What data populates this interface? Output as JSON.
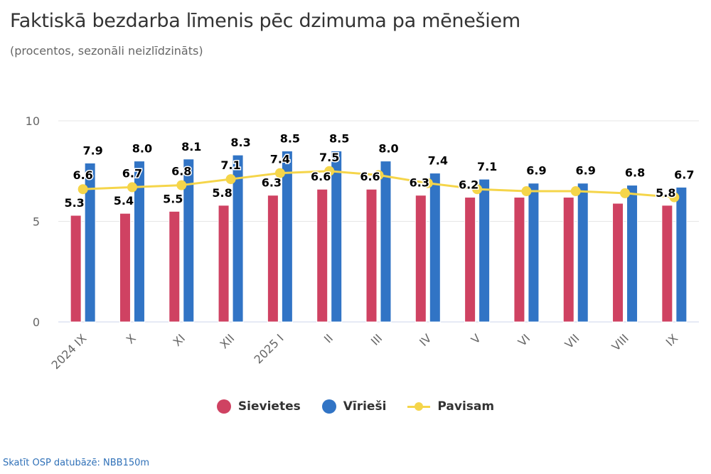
{
  "header": {
    "title": "Faktiskā bezdarba līmenis pēc dzimuma pa mēnešiem",
    "subtitle": "(procentos, sezonāli neizlīdzināts)"
  },
  "chart_data": {
    "type": "bar",
    "title": "Faktiskā bezdarba līmenis pēc dzimuma pa mēnešiem",
    "subtitle": "(procentos, sezonāli neizlīdzināts)",
    "xlabel": "",
    "ylabel": "",
    "ylim": [
      0,
      10
    ],
    "yticks": [
      "0",
      "5",
      "10"
    ],
    "grid": true,
    "legend_position": "bottom",
    "categories": [
      "2024 IX",
      "X",
      "XI",
      "XII",
      "2025 I",
      "II",
      "III",
      "IV",
      "V",
      "VI",
      "VII",
      "VIII",
      "IX"
    ],
    "series": [
      {
        "name": "Sievietes",
        "type": "bar",
        "color": "#cf4262",
        "values": [
          5.3,
          5.4,
          5.5,
          5.8,
          6.3,
          6.6,
          6.6,
          6.3,
          6.2,
          6.2,
          6.2,
          5.9,
          5.8
        ],
        "labels_shown": [
          true,
          true,
          true,
          true,
          true,
          true,
          true,
          true,
          true,
          false,
          false,
          false,
          true
        ]
      },
      {
        "name": "Vīrieši",
        "type": "bar",
        "color": "#3174c5",
        "values": [
          7.9,
          8.0,
          8.1,
          8.3,
          8.5,
          8.5,
          8.0,
          7.4,
          7.1,
          6.9,
          6.9,
          6.8,
          6.7
        ],
        "labels_shown": [
          true,
          true,
          true,
          true,
          true,
          true,
          true,
          true,
          true,
          true,
          true,
          true,
          true
        ]
      },
      {
        "name": "Pavisam",
        "type": "line",
        "color": "#f5d54a",
        "values": [
          6.6,
          6.7,
          6.8,
          7.1,
          7.4,
          7.5,
          7.3,
          6.9,
          6.6,
          6.5,
          6.5,
          6.4,
          6.2
        ],
        "labels_shown": [
          true,
          true,
          true,
          true,
          true,
          true,
          false,
          false,
          false,
          false,
          false,
          false,
          false
        ]
      }
    ]
  },
  "legend": {
    "items": [
      {
        "label": "Sievietes",
        "symbol": "circle",
        "color": "#cf4262"
      },
      {
        "label": "Vīrieši",
        "symbol": "circle",
        "color": "#3174c5"
      },
      {
        "label": "Pavisam",
        "symbol": "line-marker",
        "color": "#f5d54a"
      }
    ]
  },
  "footer": {
    "source_link": "Skatīt OSP datubāzē: NBB150m"
  }
}
